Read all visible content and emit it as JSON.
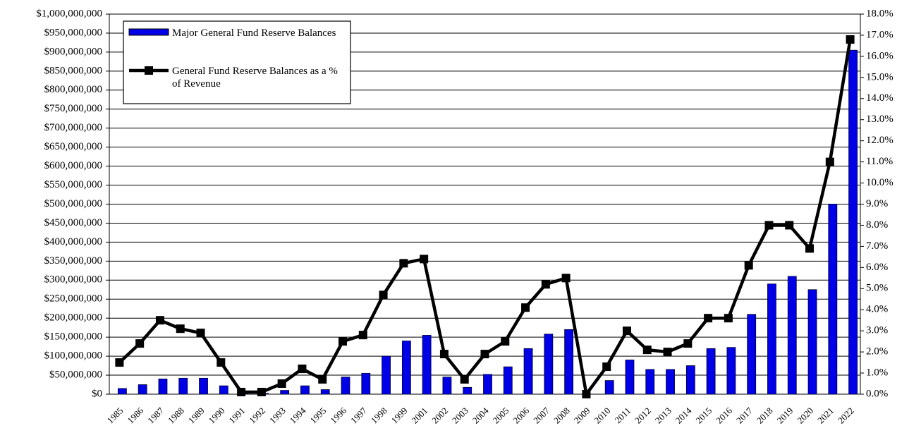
{
  "chart_data": {
    "type": "bar",
    "categories": [
      "1985",
      "1986",
      "1987",
      "1988",
      "1989",
      "1990",
      "1991",
      "1992",
      "1993",
      "1994",
      "1995",
      "1996",
      "1997",
      "1998",
      "1999",
      "2001",
      "2002",
      "2003",
      "2004",
      "2005",
      "2006",
      "2007",
      "2008",
      "2009",
      "2010",
      "2011",
      "2012",
      "2013",
      "2014",
      "2015",
      "2016",
      "2017",
      "2018",
      "2019",
      "2020",
      "2021",
      "2022"
    ],
    "series": [
      {
        "name": "Major General Fund Reserve Balances",
        "type": "bar",
        "color": "#0000e6",
        "values": [
          15000000,
          25000000,
          40000000,
          42000000,
          42000000,
          22000000,
          2000000,
          2000000,
          10000000,
          22000000,
          12000000,
          45000000,
          55000000,
          100000000,
          140000000,
          155000000,
          45000000,
          18000000,
          52000000,
          72000000,
          120000000,
          158000000,
          170000000,
          0,
          36000000,
          90000000,
          65000000,
          65000000,
          75000000,
          120000000,
          123000000,
          210000000,
          290000000,
          310000000,
          275000000,
          500000000,
          905000000
        ]
      },
      {
        "name": "General Fund Reserve Balances as a % of Revenue",
        "type": "line",
        "axis": "y2",
        "color": "#000000",
        "values": [
          1.5,
          2.4,
          3.5,
          3.1,
          2.9,
          1.5,
          0.1,
          0.1,
          0.5,
          1.2,
          0.7,
          2.5,
          2.8,
          4.7,
          6.2,
          6.4,
          1.9,
          0.7,
          1.9,
          2.5,
          4.1,
          5.2,
          5.5,
          0.0,
          1.3,
          3.0,
          2.1,
          2.0,
          2.4,
          3.6,
          3.6,
          6.1,
          8.0,
          8.0,
          6.9,
          11.0,
          16.8
        ]
      }
    ],
    "ylim": [
      0,
      1000000000
    ],
    "yticks": [
      {
        "value": 0,
        "label": "$0"
      },
      {
        "value": 50000000,
        "label": "$50,000,000"
      },
      {
        "value": 100000000,
        "label": "$100,000,000"
      },
      {
        "value": 150000000,
        "label": "$150,000,000"
      },
      {
        "value": 200000000,
        "label": "$200,000,000"
      },
      {
        "value": 250000000,
        "label": "$250,000,000"
      },
      {
        "value": 300000000,
        "label": "$300,000,000"
      },
      {
        "value": 350000000,
        "label": "$350,000,000"
      },
      {
        "value": 400000000,
        "label": "$400,000,000"
      },
      {
        "value": 450000000,
        "label": "$450,000,000"
      },
      {
        "value": 500000000,
        "label": "$500,000,000"
      },
      {
        "value": 550000000,
        "label": "$550,000,000"
      },
      {
        "value": 600000000,
        "label": "$600,000,000"
      },
      {
        "value": 650000000,
        "label": "$650,000,000"
      },
      {
        "value": 700000000,
        "label": "$700,000,000"
      },
      {
        "value": 750000000,
        "label": "$750,000,000"
      },
      {
        "value": 800000000,
        "label": "$800,000,000"
      },
      {
        "value": 850000000,
        "label": "$850,000,000"
      },
      {
        "value": 900000000,
        "label": "$900,000,000"
      },
      {
        "value": 950000000,
        "label": "$950,000,000"
      },
      {
        "value": 1000000000,
        "label": "$1,000,000,000"
      }
    ],
    "y2lim": [
      0,
      18
    ],
    "y2ticks": [
      {
        "value": 0,
        "label": "0.0%"
      },
      {
        "value": 1,
        "label": "1.0%"
      },
      {
        "value": 2,
        "label": "2.0%"
      },
      {
        "value": 3,
        "label": "3.0%"
      },
      {
        "value": 4,
        "label": "4.0%"
      },
      {
        "value": 5,
        "label": "5.0%"
      },
      {
        "value": 6,
        "label": "6.0%"
      },
      {
        "value": 7,
        "label": "7.0%"
      },
      {
        "value": 8,
        "label": "8.0%"
      },
      {
        "value": 9,
        "label": "9.0%"
      },
      {
        "value": 10,
        "label": "10.0%"
      },
      {
        "value": 11,
        "label": "11.0%"
      },
      {
        "value": 12,
        "label": "12.0%"
      },
      {
        "value": 13,
        "label": "13.0%"
      },
      {
        "value": 14,
        "label": "14.0%"
      },
      {
        "value": 15,
        "label": "15.0%"
      },
      {
        "value": 16,
        "label": "16.0%"
      },
      {
        "value": 17,
        "label": "17.0%"
      },
      {
        "value": 18,
        "label": "18.0%"
      }
    ],
    "grid": true,
    "legend": "top-left"
  }
}
